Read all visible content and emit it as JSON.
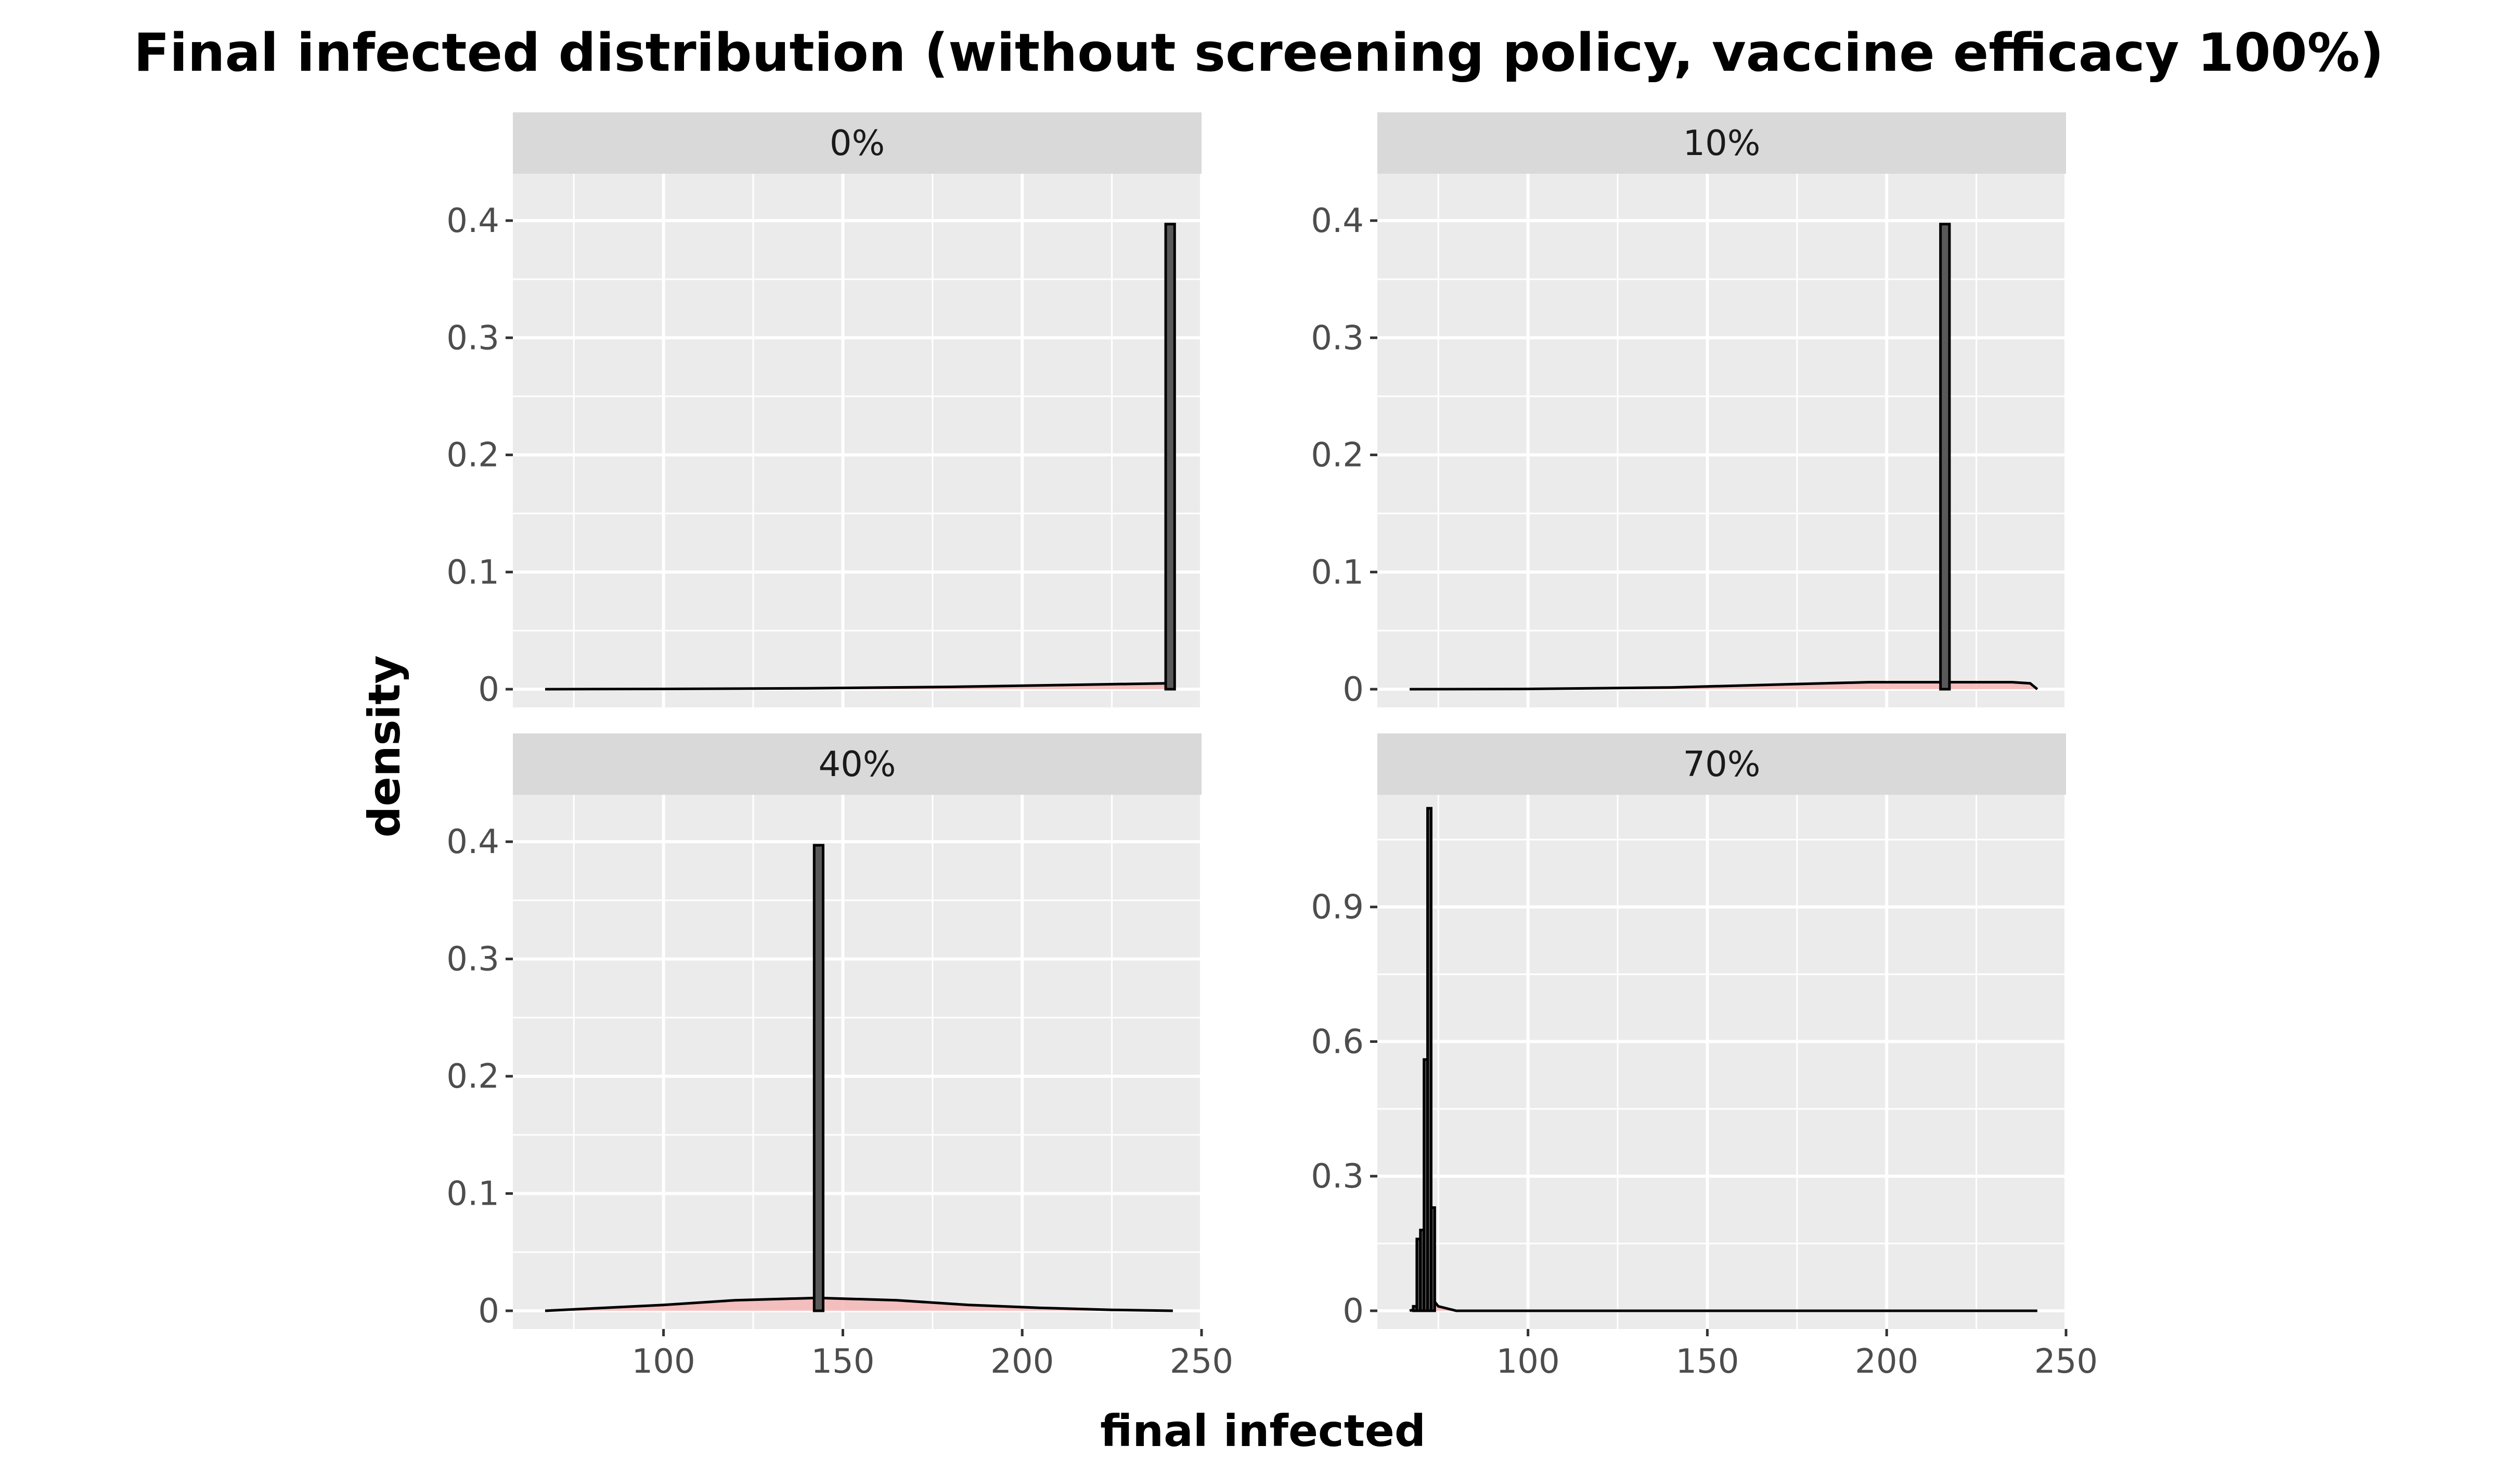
{
  "chart_data": {
    "type": "histogram",
    "title": "Final infected distribution (without screening policy, vaccine efficacy 100%)",
    "xlabel": "final infected",
    "ylabel": "density",
    "xlim": [
      58,
      250
    ],
    "x_ticks": [
      100,
      150,
      200,
      250
    ],
    "facet_scales": "free_y",
    "colors": {
      "histogram_fill": "#595959",
      "density_fill": "#f4b6b6",
      "outline": "#000000",
      "panel_bg": "#ebebeb",
      "strip_bg": "#d9d9d9",
      "grid": "#ffffff"
    },
    "panels": [
      {
        "label": "0%",
        "y_ticks": [
          0,
          0.1,
          0.2,
          0.3,
          0.4
        ],
        "ylim": [
          0,
          0.44
        ],
        "histogram": [
          {
            "x0": 240,
            "x1": 242.5,
            "density": 0.397
          }
        ],
        "density_curve": [
          [
            67,
            0
          ],
          [
            100,
            0.0002
          ],
          [
            140,
            0.0008
          ],
          [
            180,
            0.002
          ],
          [
            210,
            0.0035
          ],
          [
            230,
            0.0045
          ],
          [
            240,
            0.005
          ],
          [
            242,
            0.005
          ]
        ]
      },
      {
        "label": "10%",
        "y_ticks": [
          0,
          0.1,
          0.2,
          0.3,
          0.4
        ],
        "ylim": [
          0,
          0.44
        ],
        "histogram": [
          {
            "x0": 215,
            "x1": 217.5,
            "density": 0.397
          }
        ],
        "density_curve": [
          [
            67,
            0
          ],
          [
            100,
            0.0002
          ],
          [
            140,
            0.0015
          ],
          [
            170,
            0.004
          ],
          [
            195,
            0.006
          ],
          [
            215,
            0.006
          ],
          [
            235,
            0.006
          ],
          [
            240,
            0.005
          ],
          [
            242,
            0
          ]
        ]
      },
      {
        "label": "40%",
        "y_ticks": [
          0,
          0.1,
          0.2,
          0.3,
          0.4
        ],
        "ylim": [
          0,
          0.44
        ],
        "histogram": [
          {
            "x0": 142,
            "x1": 144.5,
            "density": 0.397
          }
        ],
        "density_curve": [
          [
            67,
            0
          ],
          [
            80,
            0.002
          ],
          [
            100,
            0.005
          ],
          [
            120,
            0.009
          ],
          [
            143,
            0.011
          ],
          [
            165,
            0.009
          ],
          [
            185,
            0.005
          ],
          [
            205,
            0.0025
          ],
          [
            225,
            0.0008
          ],
          [
            242,
            0
          ]
        ]
      },
      {
        "label": "70%",
        "y_ticks": [
          0,
          0.3,
          0.6,
          0.9
        ],
        "ylim": [
          0,
          1.15
        ],
        "histogram": [
          {
            "x0": 68,
            "x1": 69,
            "density": 0.01
          },
          {
            "x0": 69,
            "x1": 70,
            "density": 0.16
          },
          {
            "x0": 70,
            "x1": 71,
            "density": 0.18
          },
          {
            "x0": 71,
            "x1": 72,
            "density": 0.56
          },
          {
            "x0": 72,
            "x1": 73,
            "density": 1.12
          },
          {
            "x0": 73,
            "x1": 74,
            "density": 0.23
          }
        ],
        "density_curve": [
          [
            67,
            0
          ],
          [
            69,
            0.005
          ],
          [
            71,
            0.02
          ],
          [
            73,
            0.03
          ],
          [
            75,
            0.01
          ],
          [
            80,
            0
          ],
          [
            242,
            0
          ]
        ]
      }
    ]
  }
}
